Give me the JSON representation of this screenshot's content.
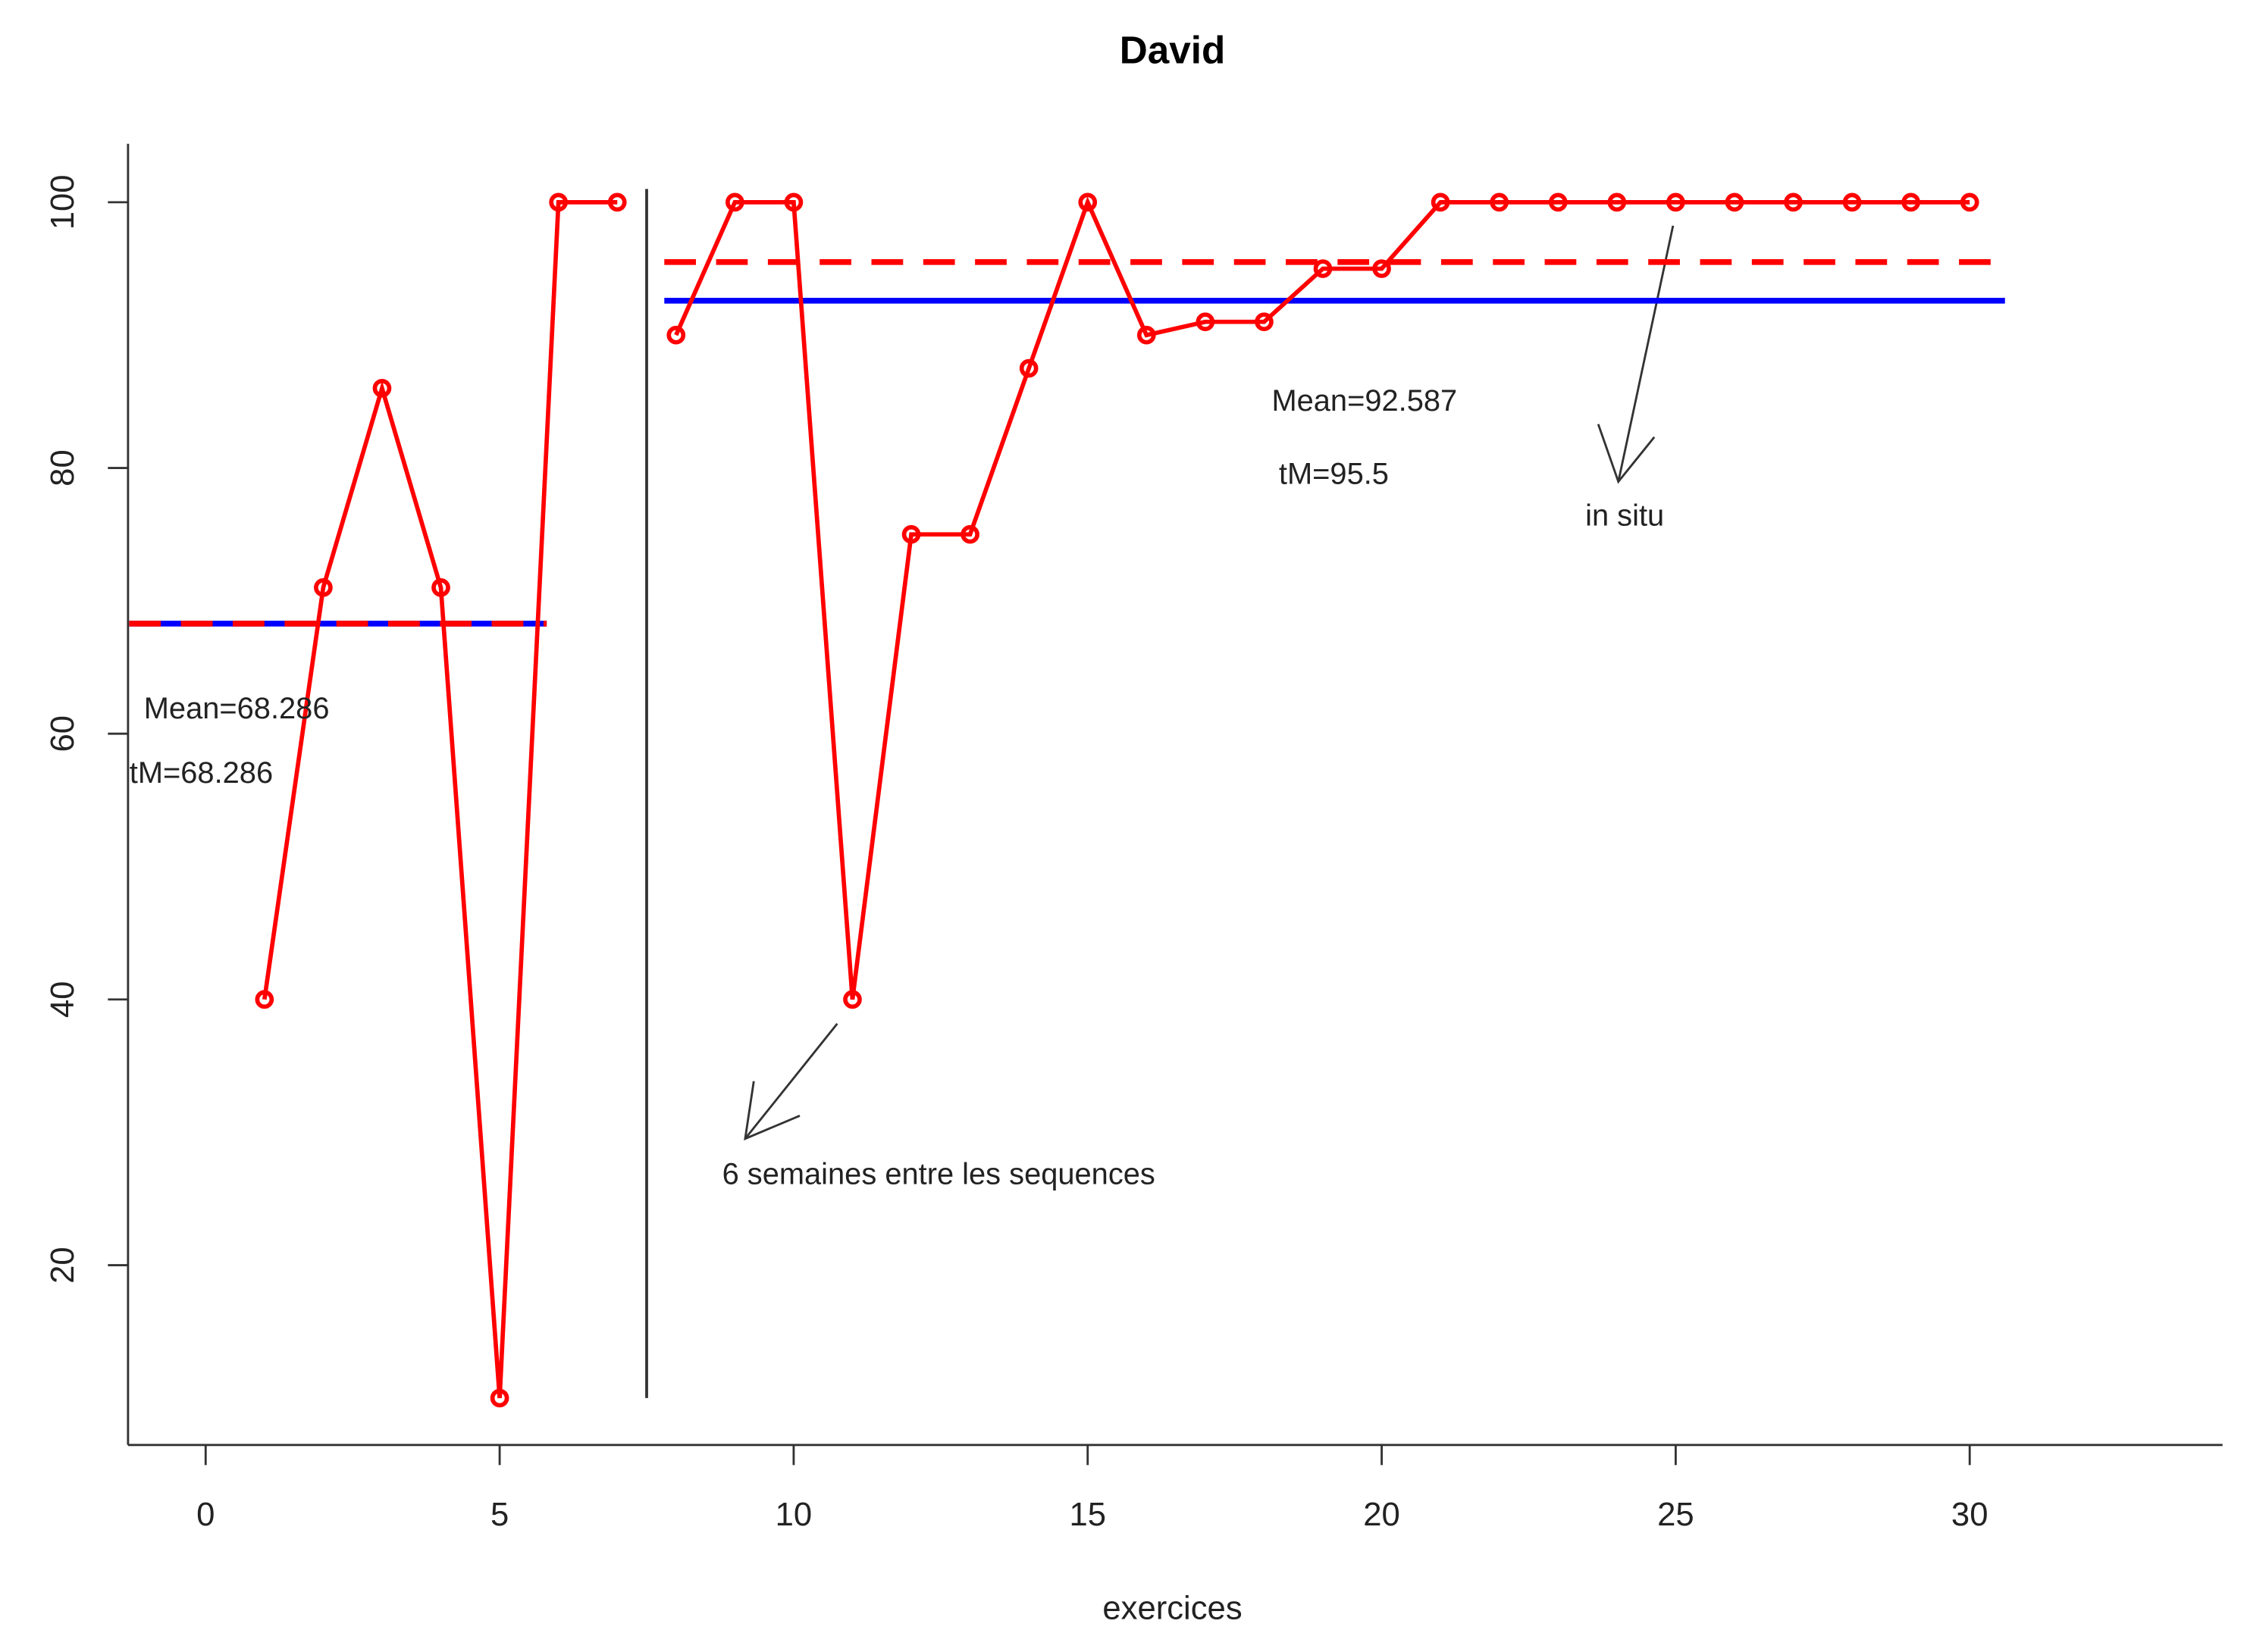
{
  "chart_data": {
    "type": "line",
    "title": "David",
    "x_label": "exercices",
    "segments": [
      {
        "x": [
          1,
          2,
          3,
          4,
          5,
          6,
          7
        ],
        "values": [
          40,
          71,
          86,
          71,
          10,
          100,
          100
        ],
        "color": "#ff0000"
      },
      {
        "x": [
          8,
          9,
          10,
          11,
          12,
          13,
          14,
          15,
          16,
          17,
          18,
          19,
          20,
          21,
          22,
          23,
          24,
          25,
          26,
          27,
          28,
          29,
          30
        ],
        "values": [
          90,
          100,
          100,
          40,
          75,
          75,
          87.5,
          100,
          90,
          91,
          91,
          95,
          95,
          100,
          100,
          100,
          100,
          100,
          100,
          100,
          100,
          100,
          100
        ],
        "color": "#ff0000"
      }
    ],
    "hlines": [
      {
        "value": 68.286,
        "color": "#0000ff",
        "dashed": false,
        "xrange": [
          -1.3,
          5.8
        ]
      },
      {
        "value": 68.286,
        "color": "#ff0000",
        "dashed": true,
        "xrange": [
          -1.3,
          5.8
        ]
      },
      {
        "value": 95.5,
        "color": "#ff0000",
        "dashed": true,
        "xrange": [
          7.8,
          30.6
        ]
      },
      {
        "value": 92.587,
        "color": "#0000ff",
        "dashed": false,
        "xrange": [
          7.8,
          30.6
        ]
      }
    ],
    "vlines": [
      {
        "value": 7.5,
        "color": "#333333",
        "yrange": [
          10,
          101
        ]
      }
    ],
    "annotations": [
      "Mean=68.286",
      "tM=68.286",
      "Mean=92.587",
      "tM=95.5",
      "in situ",
      "6 semaines entre les sequences"
    ],
    "xlim": [
      -1.32,
      34.3
    ],
    "ylim": [
      6.47,
      104.4
    ],
    "xticks": [
      0,
      5,
      10,
      15,
      20,
      25,
      30
    ],
    "yticks": [
      20,
      40,
      60,
      80,
      100
    ]
  }
}
